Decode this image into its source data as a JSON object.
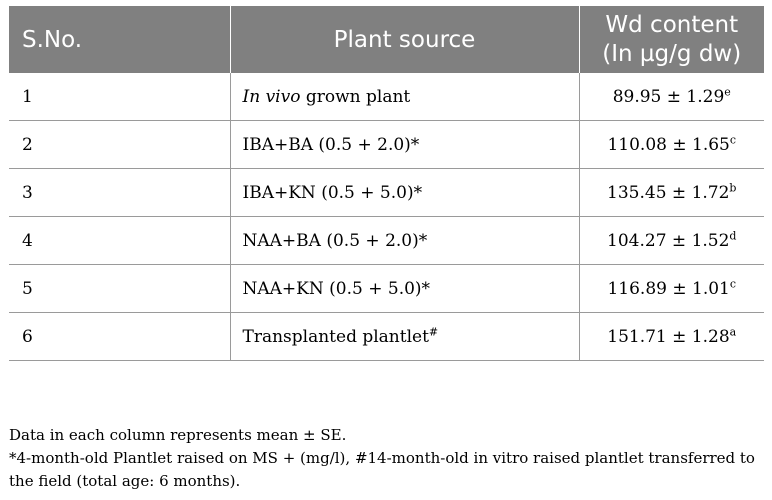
{
  "table": {
    "headers": {
      "sno": "S.No.",
      "source": "Plant source",
      "content_line1": "Wd content",
      "content_line2": "(In µg/g dw)"
    },
    "rows": [
      {
        "sno": "1",
        "source_italic": "In vivo",
        "source": " grown plant",
        "source_sup": "",
        "value": "89.95 ± 1.29",
        "letter": "e"
      },
      {
        "sno": "2",
        "source_italic": "",
        "source": "IBA+BA (0.5 + 2.0)*",
        "source_sup": "",
        "value": "110.08 ± 1.65",
        "letter": "c"
      },
      {
        "sno": "3",
        "source_italic": "",
        "source": "IBA+KN (0.5 + 5.0)*",
        "source_sup": "",
        "value": "135.45 ± 1.72",
        "letter": "b"
      },
      {
        "sno": "4",
        "source_italic": "",
        "source": "NAA+BA (0.5 + 2.0)*",
        "source_sup": "",
        "value": "104.27 ± 1.52",
        "letter": "d"
      },
      {
        "sno": "5",
        "source_italic": "",
        "source": "NAA+KN (0.5 + 5.0)*",
        "source_sup": "",
        "value": "116.89 ± 1.01",
        "letter": "c"
      },
      {
        "sno": "6",
        "source_italic": "",
        "source": "Transplanted plantlet",
        "source_sup": "#",
        "value": "151.71 ± 1.28",
        "letter": "a"
      }
    ]
  },
  "notes": {
    "line1": "Data in each column represents mean ± SE.",
    "line2": "*4-month-old Plantlet raised on MS + (mg/l), #14-month-old in vitro raised plantlet transferred to the field (total age: 6 months)."
  },
  "colors": {
    "header_bg": "#808080",
    "header_text": "#ffffff",
    "rule": "#9a9a9a"
  }
}
